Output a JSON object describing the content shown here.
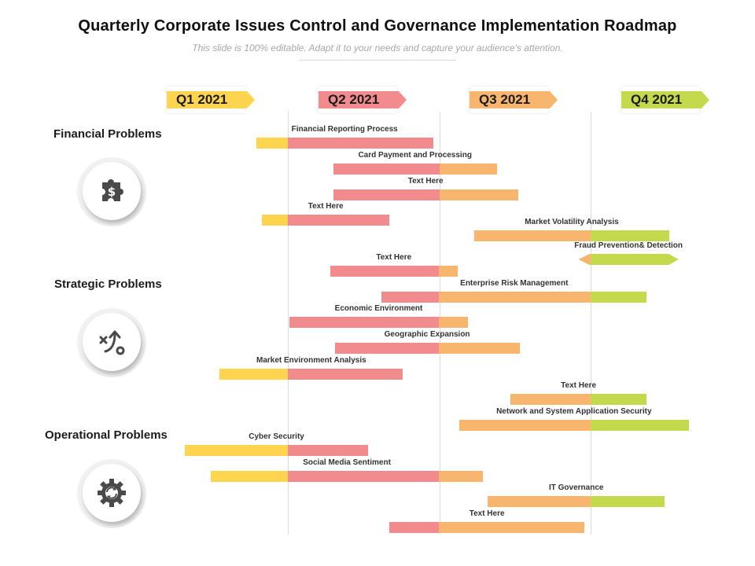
{
  "title": "Quarterly Corporate Issues Control and Governance Implementation Roadmap",
  "subtitle": "This slide is 100% editable. Adapt it to your needs and capture your audience's attention.",
  "colors": {
    "q1": "#FFD54F",
    "q2": "#F28B8E",
    "q3": "#F8B56D",
    "q4": "#C5D94C"
  },
  "quarters": [
    {
      "label": "Q1 2021",
      "color": "#FFD54F"
    },
    {
      "label": "Q2 2021",
      "color": "#F28B8E"
    },
    {
      "label": "Q3 2021",
      "color": "#F8B56D"
    },
    {
      "label": "Q4 2021",
      "color": "#C5D94C"
    }
  ],
  "categories": [
    {
      "label": "Financial Problems",
      "icon": "puzzle-dollar-icon"
    },
    {
      "label": "Strategic Problems",
      "icon": "strategy-arrow-icon"
    },
    {
      "label": "Operational Problems",
      "icon": "gear-cycle-icon"
    }
  ],
  "chart_data": {
    "type": "gantt",
    "timeline_units": "quarters (0 = start of Q2 2021, 1 = start of Q3 2021, 2 = start of Q4 2021)",
    "tasks": [
      {
        "name": "Financial Reporting Process",
        "start": -0.21,
        "end": 0.96
      },
      {
        "name": "Card Payment and Processing",
        "start": 0.3,
        "end": 1.38
      },
      {
        "name": "Text Here",
        "start": 0.3,
        "end": 1.52
      },
      {
        "name": "Text Here",
        "start": -0.17,
        "end": 0.67
      },
      {
        "name": "Market Volatility Analysis",
        "start": 1.23,
        "end": 2.52
      },
      {
        "name": "Fraud Prevention& Detection",
        "start": 1.92,
        "end": 2.58,
        "arrow": true
      },
      {
        "name": "Text Here",
        "start": 0.28,
        "end": 1.12
      },
      {
        "name": "Enterprise Risk Management",
        "start": 0.62,
        "end": 2.37
      },
      {
        "name": "Economic Environment",
        "start": 0.01,
        "end": 1.19
      },
      {
        "name": "Geographic Expansion",
        "start": 0.31,
        "end": 1.53
      },
      {
        "name": "Market Environment Analysis",
        "start": -0.45,
        "end": 0.76
      },
      {
        "name": "Text Here",
        "start": 1.47,
        "end": 2.37
      },
      {
        "name": "Network and System Application Security",
        "start": 1.13,
        "end": 2.65
      },
      {
        "name": "Cyber Security",
        "start": -0.68,
        "end": 0.53
      },
      {
        "name": "Social Media Sentiment",
        "start": -0.51,
        "end": 1.29
      },
      {
        "name": "IT Governance",
        "start": 1.32,
        "end": 2.49
      },
      {
        "name": "Text Here",
        "start": 0.67,
        "end": 1.96
      }
    ]
  }
}
